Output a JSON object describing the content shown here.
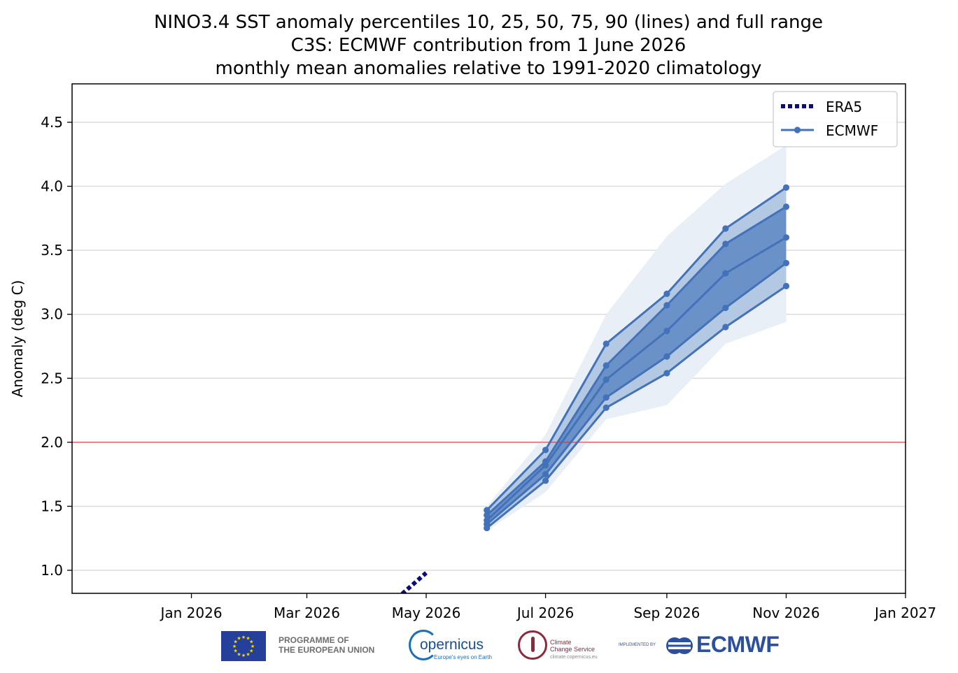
{
  "chart_data": {
    "type": "line",
    "title": [
      "NINO3.4 SST anomaly percentiles 10, 25, 50, 75, 90 (lines) and full range",
      "C3S: ECMWF contribution from 1 June 2026",
      "monthly mean anomalies relative to 1991-2020 climatology"
    ],
    "xlabel": "",
    "ylabel": "Anomaly (deg C)",
    "xlim": [
      "2025-11-01",
      "2027-01-01"
    ],
    "ylim": [
      0.82,
      4.8
    ],
    "x_ticks": [
      "2026-01-01",
      "2026-03-01",
      "2026-05-01",
      "2026-07-01",
      "2026-09-01",
      "2026-11-01",
      "2027-01-01"
    ],
    "x_tick_labels": [
      "Jan 2026",
      "Mar 2026",
      "May 2026",
      "Jul 2026",
      "Sep 2026",
      "Nov 2026",
      "Jan 2027"
    ],
    "y_ticks": [
      1.0,
      1.5,
      2.0,
      2.5,
      3.0,
      3.5,
      4.0,
      4.5
    ],
    "y_tick_labels": [
      "1.0",
      "1.5",
      "2.0",
      "2.5",
      "3.0",
      "3.5",
      "4.0",
      "4.5"
    ],
    "grid": "horizontal",
    "reference_line": {
      "y": 2.0,
      "color": "#d62728"
    },
    "legend": {
      "placement": "top-right",
      "entries": [
        "ERA5",
        "ECMWF"
      ]
    },
    "era5": {
      "name": "ERA5",
      "color": "#0d0a7a",
      "x": [
        "2026-04-16",
        "2026-05-01"
      ],
      "y": [
        0.78,
        0.98
      ]
    },
    "ecmwf": {
      "name": "ECMWF",
      "color": "#4472b8",
      "x": [
        "2026-06-01",
        "2026-07-01",
        "2026-08-01",
        "2026-09-01",
        "2026-10-01",
        "2026-11-01"
      ],
      "p10": [
        1.33,
        1.7,
        2.27,
        2.54,
        2.9,
        3.22
      ],
      "p25": [
        1.36,
        1.75,
        2.35,
        2.67,
        3.05,
        3.4
      ],
      "p50": [
        1.39,
        1.82,
        2.49,
        2.87,
        3.32,
        3.6
      ],
      "p75": [
        1.43,
        1.85,
        2.6,
        3.07,
        3.55,
        3.84
      ],
      "p90": [
        1.47,
        1.94,
        2.77,
        3.16,
        3.67,
        3.99
      ],
      "min": [
        1.31,
        1.61,
        2.18,
        2.29,
        2.77,
        2.94
      ],
      "max": [
        1.5,
        2.06,
        3.0,
        3.61,
        4.02,
        4.32
      ]
    }
  },
  "footer": {
    "eu_text": "PROGRAMME OF\nTHE EUROPEAN UNION",
    "copernicus_word": "opernicus",
    "copernicus_tagline": "Europe's eyes on Earth",
    "c3s_text": "Climate\nChange Service",
    "c3s_url": "climate.copernicus.eu",
    "implemented_by": "IMPLEMENTED BY",
    "ecmwf_word": "ECMWF"
  }
}
